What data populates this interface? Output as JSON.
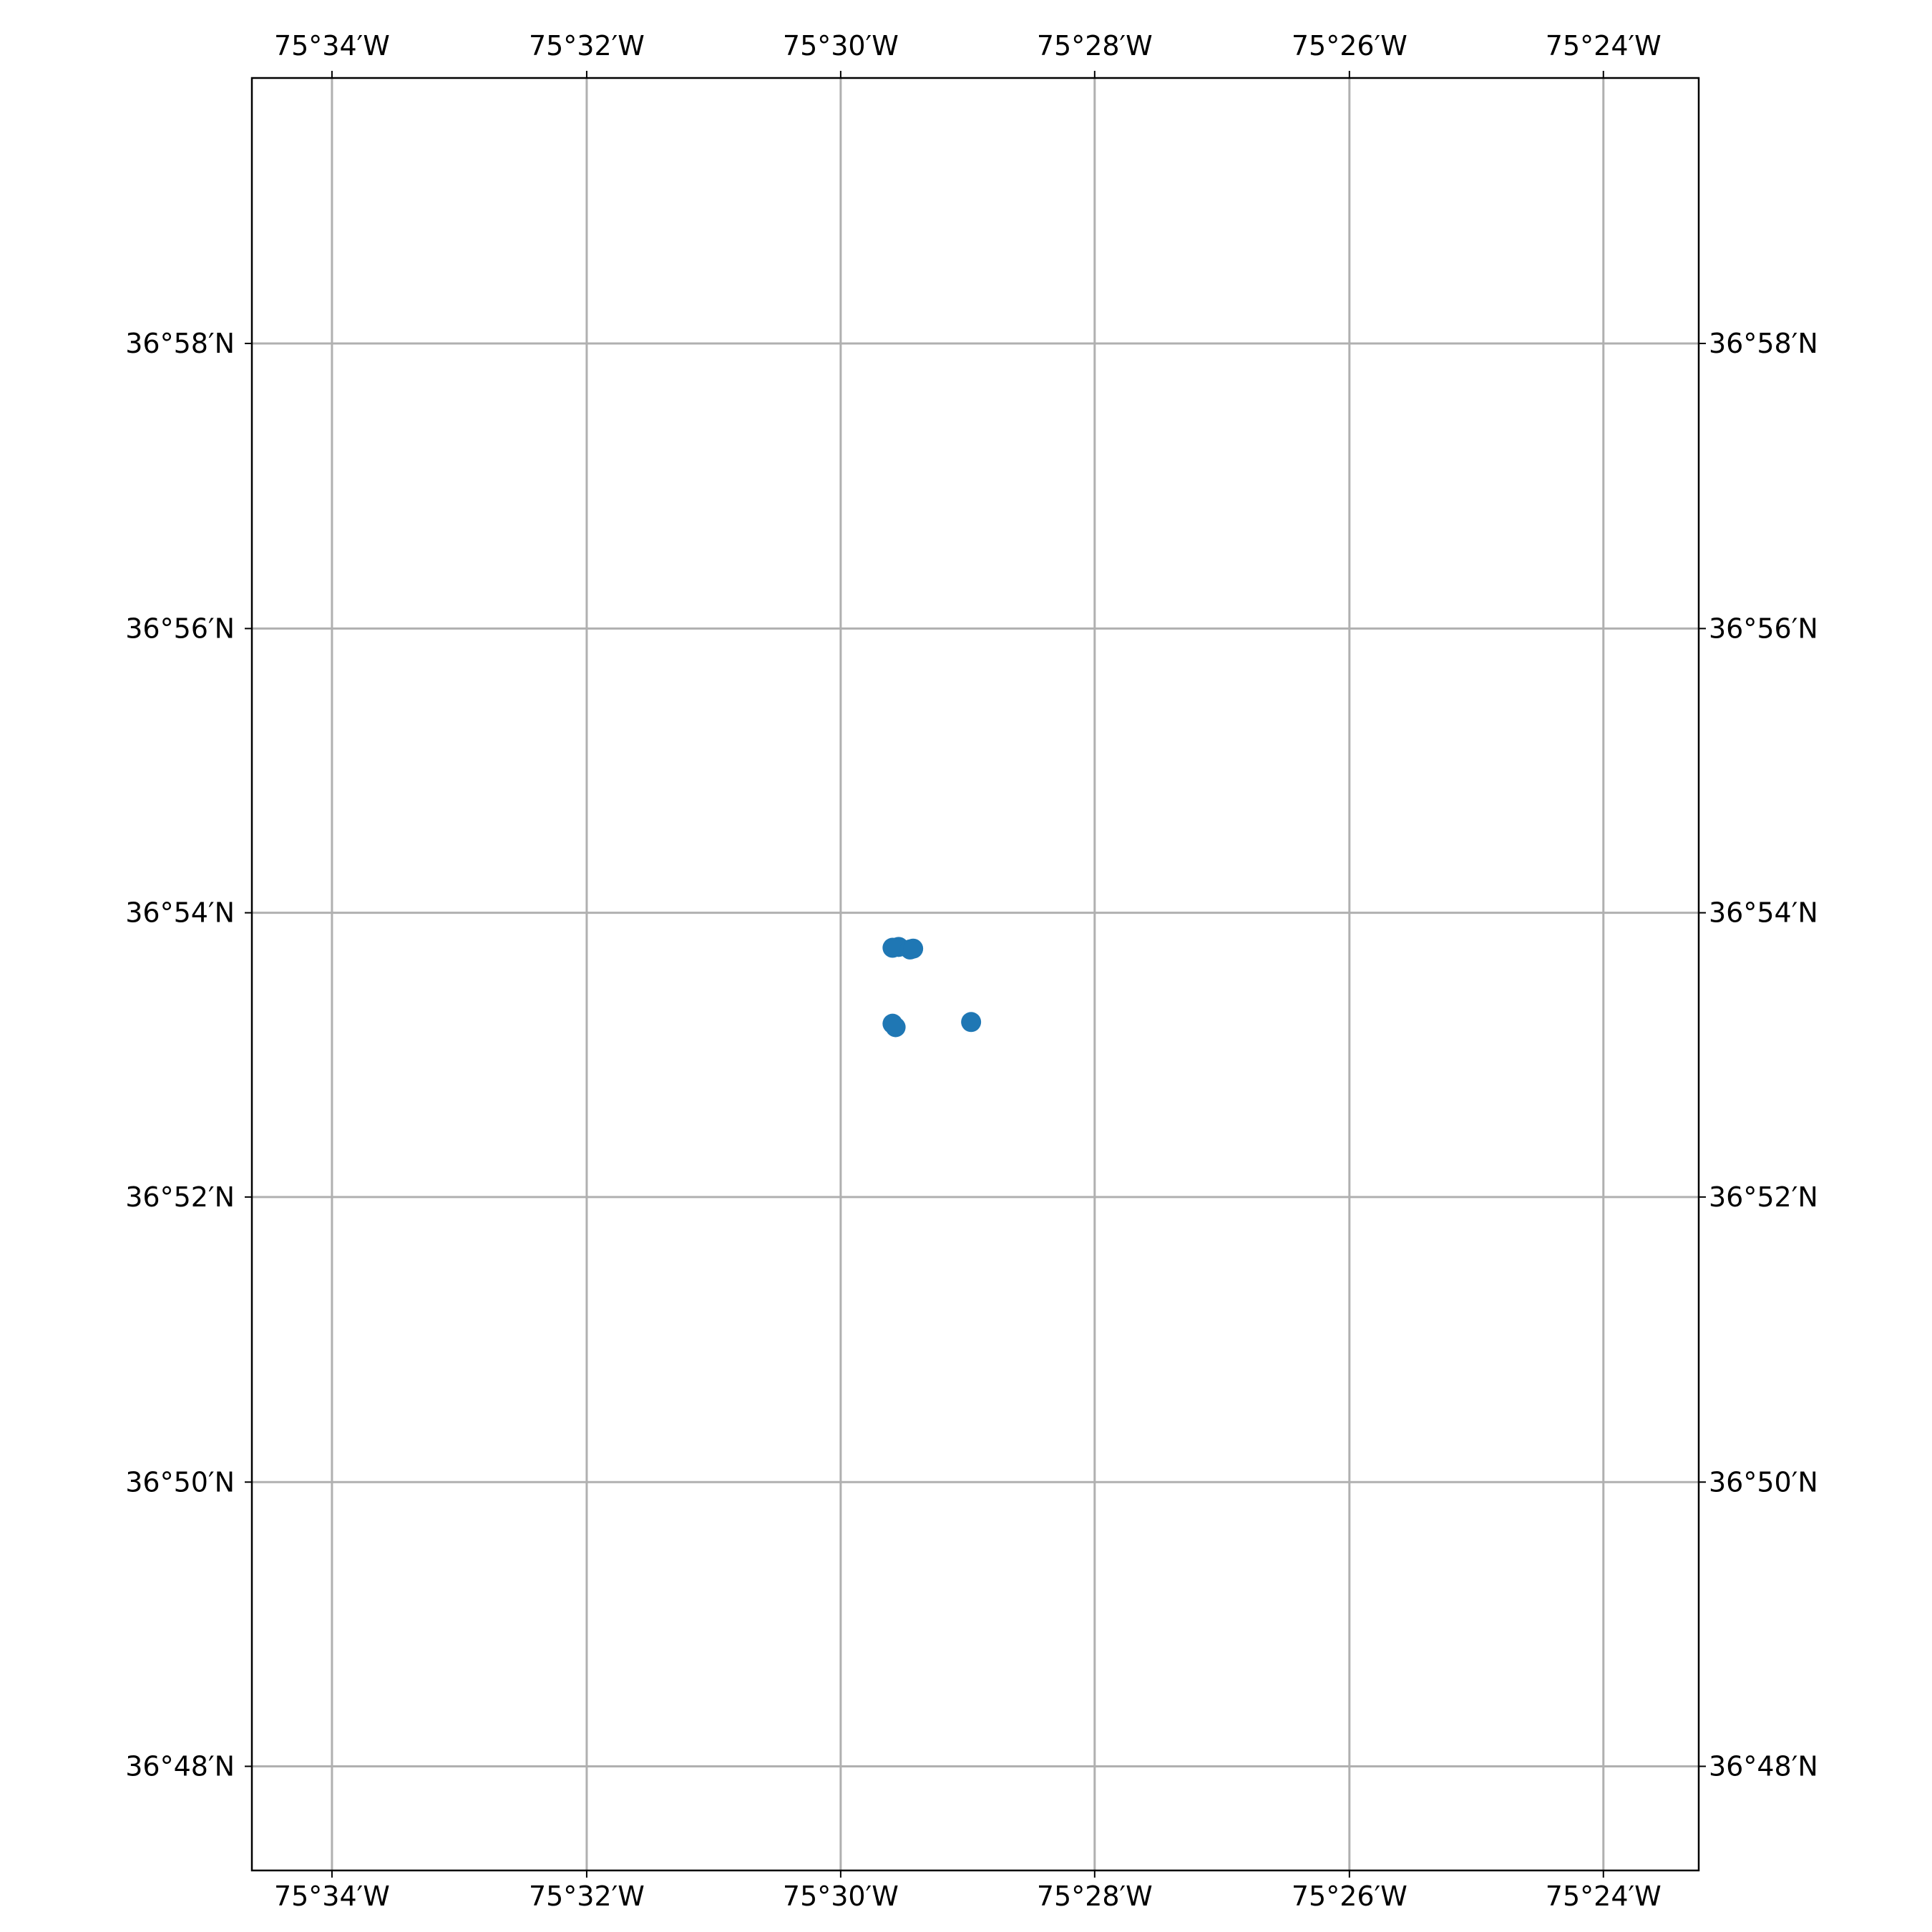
{
  "chart_data": {
    "type": "scatter",
    "title": "",
    "xlabel": "",
    "ylabel": "",
    "x_axis": {
      "name": "longitude",
      "lim": [
        -75.5772,
        -75.3875
      ],
      "ticks": [
        {
          "value": -75.5667,
          "label": "75°34′W"
        },
        {
          "value": -75.5333,
          "label": "75°32′W"
        },
        {
          "value": -75.5,
          "label": "75°30′W"
        },
        {
          "value": -75.4667,
          "label": "75°28′W"
        },
        {
          "value": -75.4333,
          "label": "75°26′W"
        },
        {
          "value": -75.4,
          "label": "75°24′W"
        }
      ]
    },
    "y_axis": {
      "name": "latitude",
      "lim": [
        36.7878,
        36.9978
      ],
      "ticks": [
        {
          "value": 36.9667,
          "label": "36°58′N"
        },
        {
          "value": 36.9333,
          "label": "36°56′N"
        },
        {
          "value": 36.9,
          "label": "36°54′N"
        },
        {
          "value": 36.8667,
          "label": "36°52′N"
        },
        {
          "value": 36.8333,
          "label": "36°50′N"
        },
        {
          "value": 36.8,
          "label": "36°48′N"
        }
      ]
    },
    "grid": true,
    "tick_labels_on": [
      "top",
      "bottom",
      "left",
      "right"
    ],
    "series": [
      {
        "color": "#1f77b4",
        "points": [
          {
            "x": -75.4932,
            "y": 36.8959
          },
          {
            "x": -75.4924,
            "y": 36.896
          },
          {
            "x": -75.4909,
            "y": 36.8957
          },
          {
            "x": -75.4905,
            "y": 36.8958
          },
          {
            "x": -75.4932,
            "y": 36.887
          },
          {
            "x": -75.4928,
            "y": 36.8866
          },
          {
            "x": -75.4829,
            "y": 36.8872
          }
        ]
      }
    ]
  },
  "colors": {
    "background": "#ffffff",
    "frame": "#000000",
    "grid": "#b0b0b0",
    "marker": "#1f77b4",
    "text": "#000000"
  }
}
